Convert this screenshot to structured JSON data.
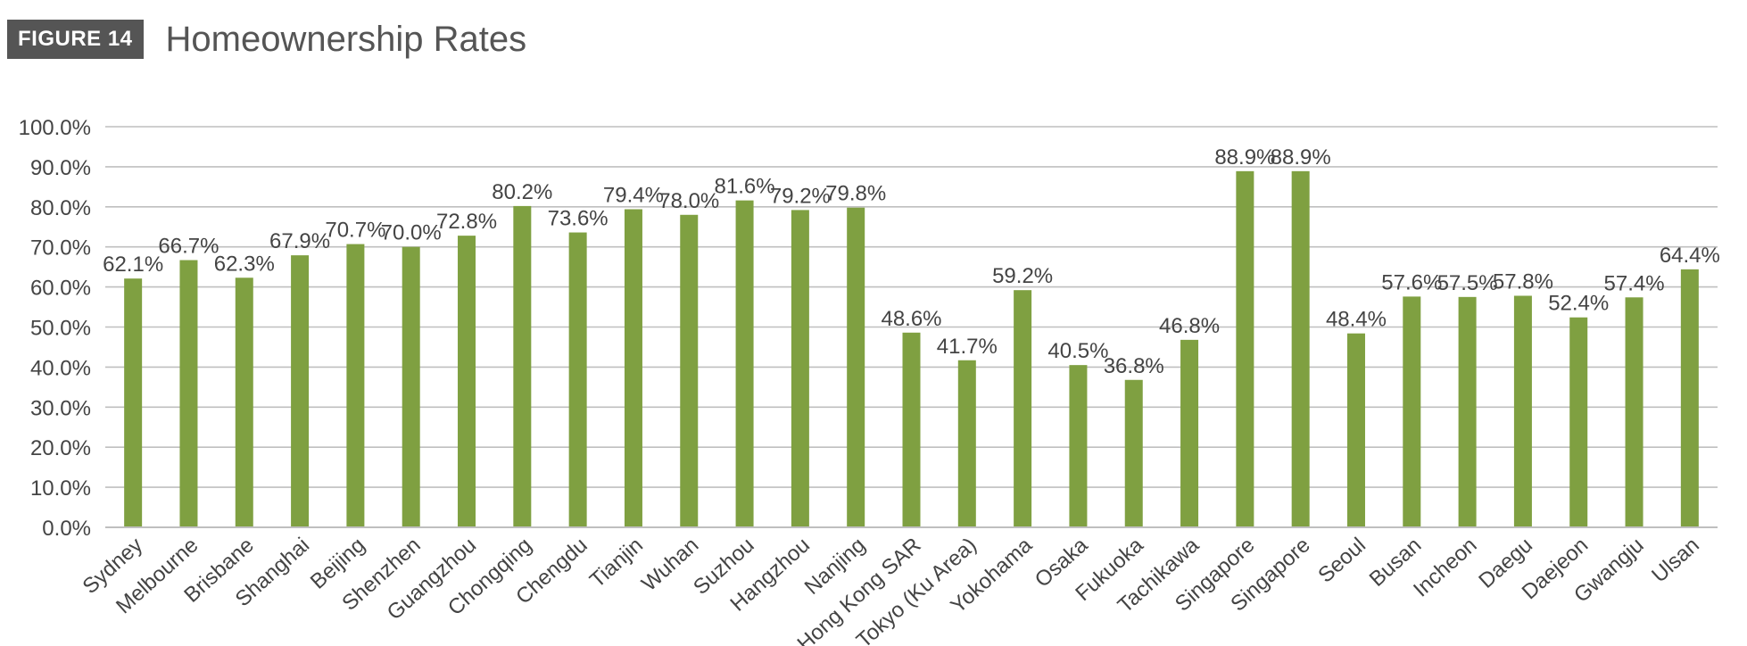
{
  "header": {
    "figure_label": "FIGURE 14",
    "title": "Homeownership Rates"
  },
  "colors": {
    "bar": "#7FA041",
    "grid": "#BFBFBF",
    "text": "#444444",
    "badge_bg": "#555555"
  },
  "chart_data": {
    "type": "bar",
    "title": "Homeownership Rates",
    "xlabel": "",
    "ylabel": "",
    "ylim": [
      0,
      100
    ],
    "grid": true,
    "legend": "none",
    "y_ticks": [
      0,
      10,
      20,
      30,
      40,
      50,
      60,
      70,
      80,
      90,
      100
    ],
    "y_tick_labels": [
      "0.0%",
      "10.0%",
      "20.0%",
      "30.0%",
      "40.0%",
      "50.0%",
      "60.0%",
      "70.0%",
      "80.0%",
      "90.0%",
      "100.0%"
    ],
    "categories": [
      "Sydney",
      "Melbourne",
      "Brisbane",
      "Shanghai",
      "Beijing",
      "Shenzhen",
      "Guangzhou",
      "Chongqing",
      "Chengdu",
      "Tianjin",
      "Wuhan",
      "Suzhou",
      "Hangzhou",
      "Nanjing",
      "Hong Kong SAR",
      "Tokyo (Ku Area)",
      "Yokohama",
      "Osaka",
      "Fukuoka",
      "Tachikawa",
      "Singapore",
      "Singapore",
      "Seoul",
      "Busan",
      "Incheon",
      "Daegu",
      "Daejeon",
      "Gwangju",
      "Ulsan"
    ],
    "values": [
      62.1,
      66.7,
      62.3,
      67.9,
      70.7,
      70.0,
      72.8,
      80.2,
      73.6,
      79.4,
      78.0,
      81.6,
      79.2,
      79.8,
      48.6,
      41.7,
      59.2,
      40.5,
      36.8,
      46.8,
      88.9,
      88.9,
      48.4,
      57.6,
      57.5,
      57.8,
      52.4,
      57.4,
      64.4
    ],
    "value_labels": [
      "62.1%",
      "66.7%",
      "62.3%",
      "67.9%",
      "70.7%",
      "70.0%",
      "72.8%",
      "80.2%",
      "73.6%",
      "79.4%",
      "78.0%",
      "81.6%",
      "79.2%",
      "79.8%",
      "48.6%",
      "41.7%",
      "59.2%",
      "40.5%",
      "36.8%",
      "46.8%",
      "88.9%",
      "88.9%",
      "48.4%",
      "57.6%",
      "57.5%",
      "57.8%",
      "52.4%",
      "57.4%",
      "64.4%"
    ]
  }
}
